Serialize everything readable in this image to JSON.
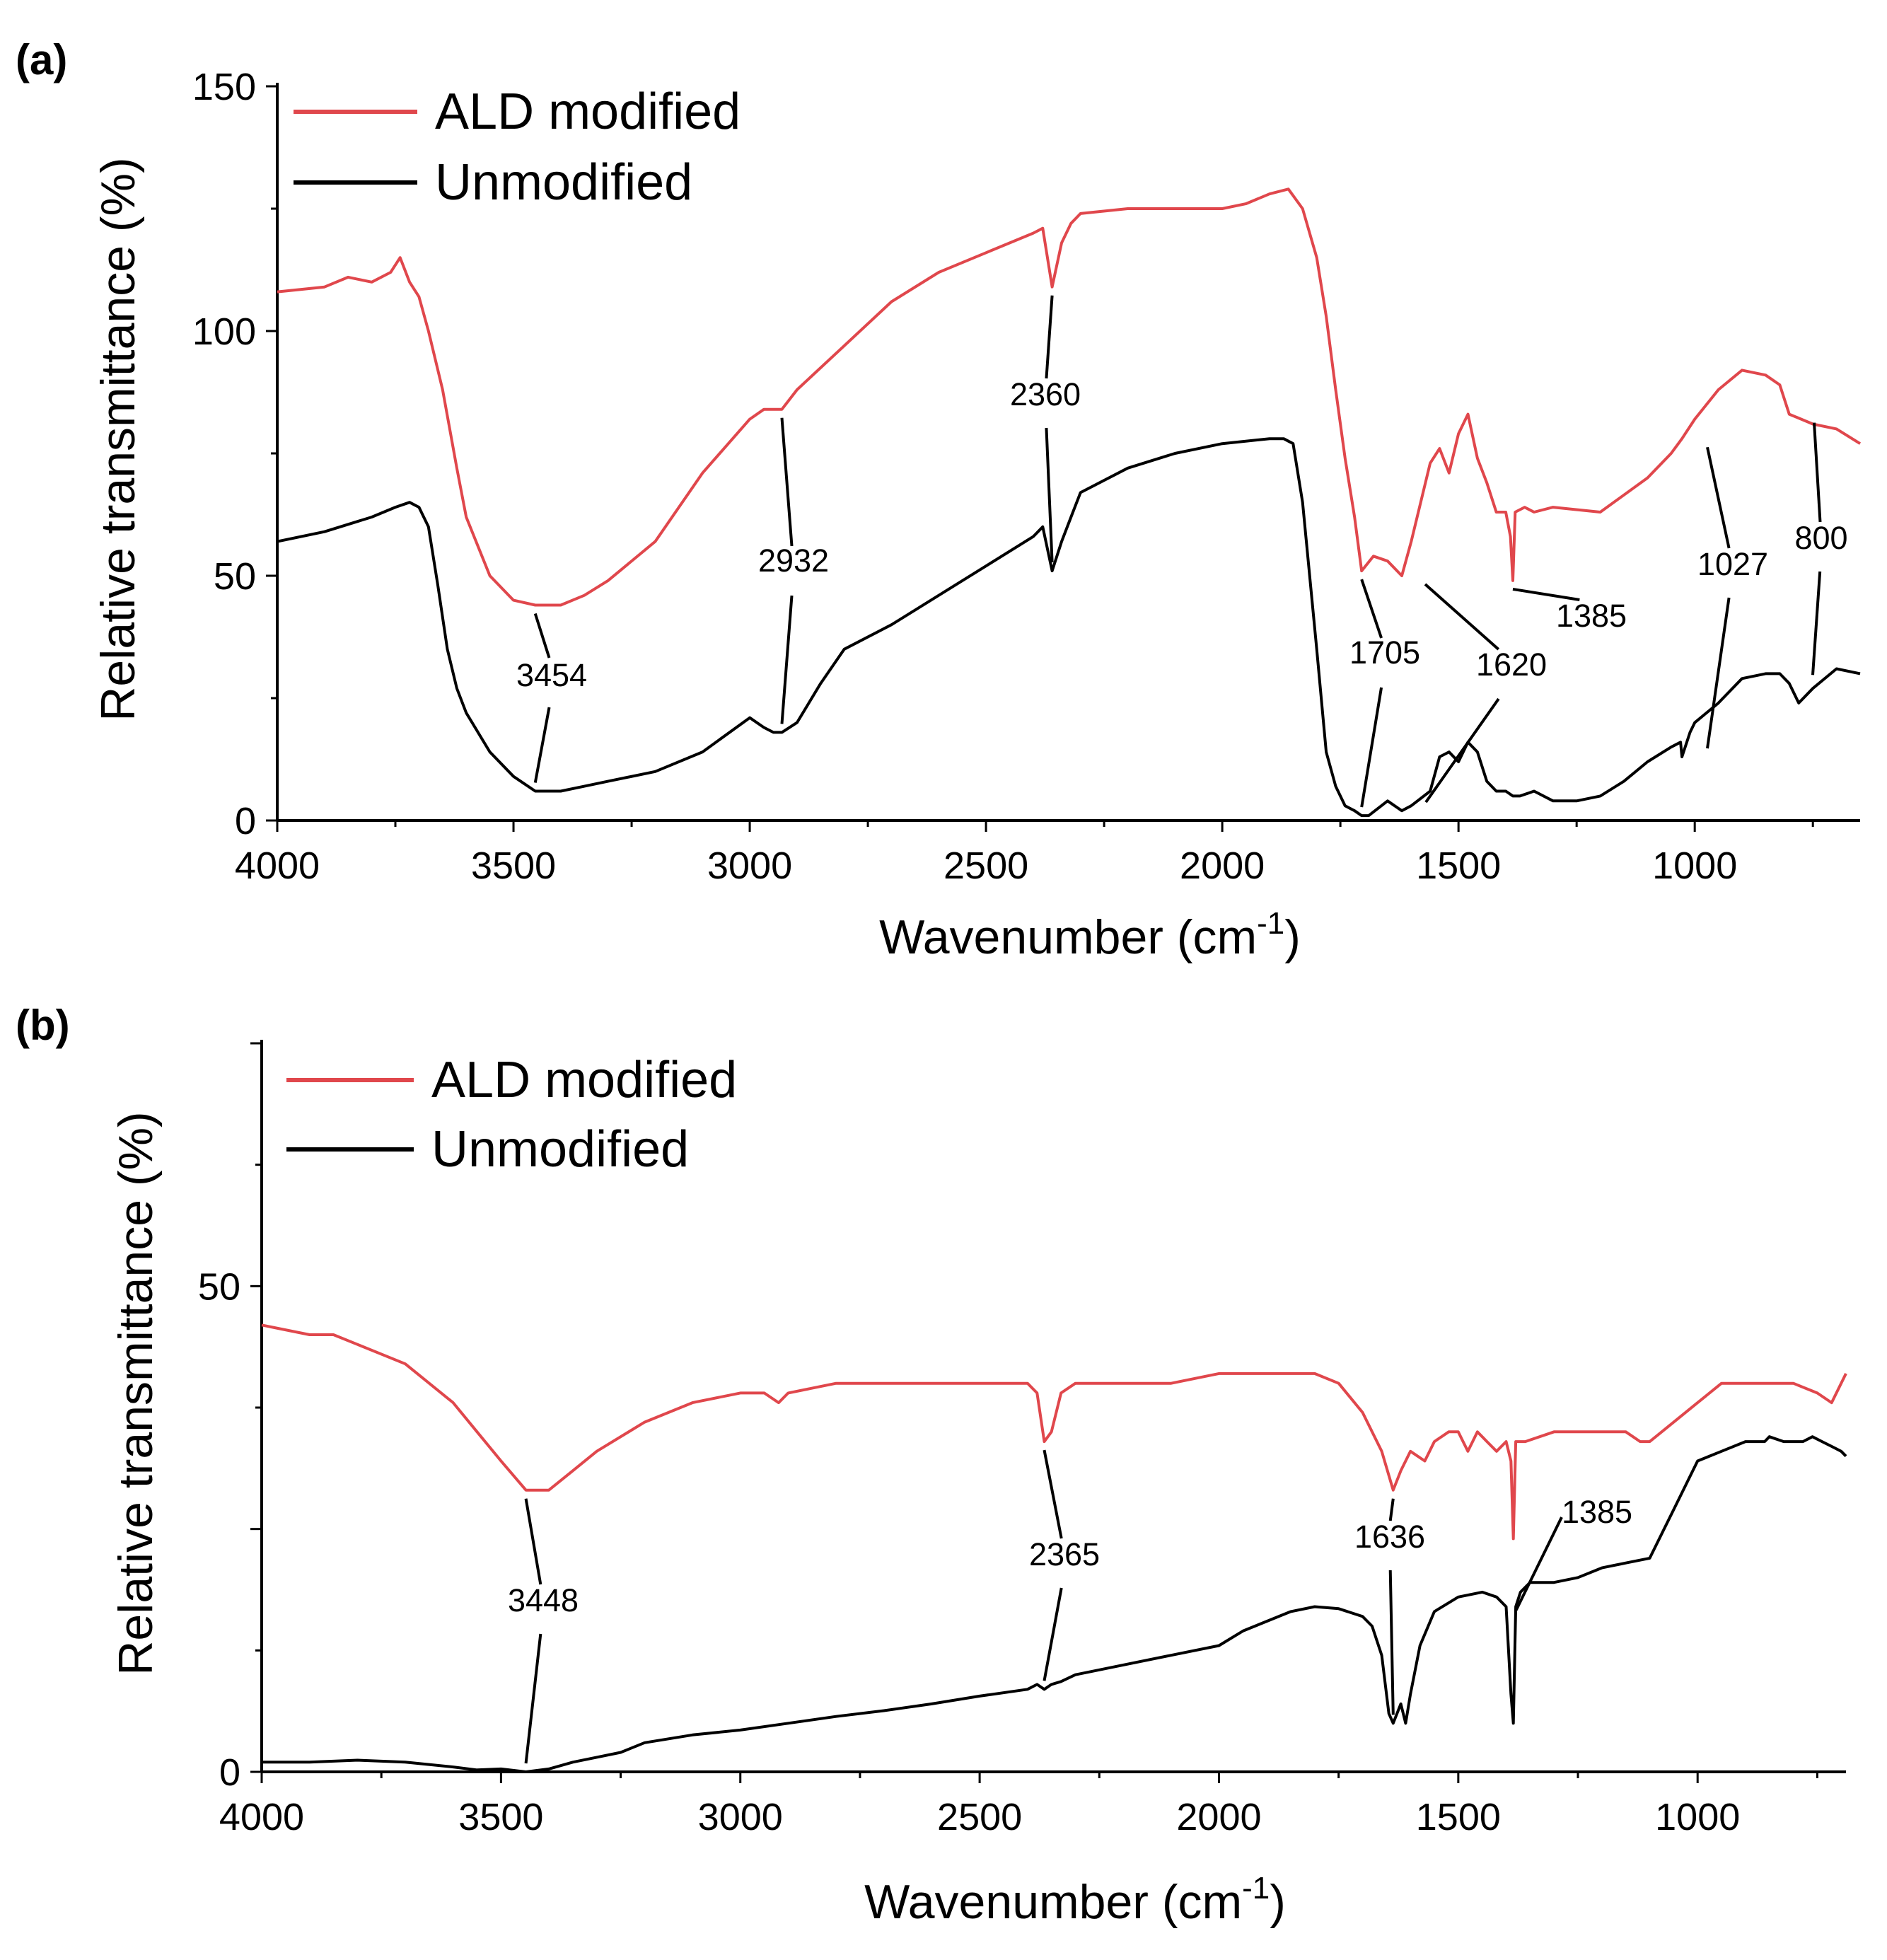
{
  "colors": {
    "ald": "#e0474c",
    "unmodified": "#000000"
  },
  "chart_data": [
    {
      "panel": "(a)",
      "type": "line",
      "xlabel": "Wavenumber (cm",
      "xlabel_sup": "-1",
      "xlabel_close": ")",
      "ylabel": "Relative transmittance (%)",
      "xlim": [
        4000,
        650
      ],
      "ylim": [
        0,
        150
      ],
      "xticks": [
        4000,
        3500,
        3000,
        2500,
        2000,
        1500,
        1000
      ],
      "yticks": [
        0,
        50,
        100,
        150
      ],
      "legend_position": "top-left",
      "series": [
        {
          "name": "ALD modified",
          "color_key": "ald",
          "x": [
            4000,
            3900,
            3850,
            3800,
            3760,
            3740,
            3720,
            3700,
            3680,
            3650,
            3620,
            3600,
            3550,
            3500,
            3454,
            3400,
            3350,
            3300,
            3200,
            3100,
            3000,
            2970,
            2932,
            2900,
            2800,
            2700,
            2600,
            2500,
            2400,
            2380,
            2360,
            2340,
            2320,
            2300,
            2200,
            2100,
            2000,
            1950,
            1900,
            1860,
            1830,
            1800,
            1780,
            1760,
            1740,
            1720,
            1705,
            1680,
            1650,
            1620,
            1600,
            1560,
            1540,
            1520,
            1500,
            1480,
            1460,
            1440,
            1420,
            1400,
            1390,
            1385,
            1380,
            1360,
            1340,
            1300,
            1200,
            1100,
            1050,
            1027,
            1000,
            950,
            900,
            850,
            820,
            800,
            750,
            700,
            650
          ],
          "y": [
            108,
            109,
            111,
            110,
            112,
            115,
            110,
            107,
            100,
            88,
            72,
            62,
            50,
            45,
            44,
            44,
            46,
            49,
            57,
            71,
            82,
            84,
            84,
            88,
            97,
            106,
            112,
            116,
            120,
            121,
            109,
            118,
            122,
            124,
            125,
            125,
            125,
            126,
            128,
            129,
            125,
            115,
            103,
            88,
            74,
            62,
            51,
            54,
            53,
            50,
            57,
            73,
            76,
            71,
            79,
            83,
            74,
            69,
            63,
            63,
            58,
            49,
            63,
            64,
            63,
            64,
            63,
            70,
            75,
            78,
            82,
            88,
            92,
            91,
            89,
            83,
            81,
            80,
            77
          ]
        },
        {
          "name": "Unmodified",
          "color_key": "unmodified",
          "x": [
            4000,
            3900,
            3800,
            3750,
            3720,
            3700,
            3680,
            3660,
            3640,
            3620,
            3600,
            3550,
            3500,
            3454,
            3400,
            3350,
            3300,
            3200,
            3100,
            3000,
            2970,
            2950,
            2932,
            2900,
            2850,
            2800,
            2700,
            2600,
            2500,
            2400,
            2380,
            2360,
            2340,
            2320,
            2300,
            2200,
            2100,
            2000,
            1900,
            1870,
            1850,
            1830,
            1800,
            1780,
            1760,
            1740,
            1720,
            1705,
            1690,
            1650,
            1620,
            1600,
            1560,
            1540,
            1520,
            1500,
            1480,
            1460,
            1440,
            1420,
            1400,
            1385,
            1370,
            1340,
            1300,
            1250,
            1200,
            1150,
            1100,
            1050,
            1030,
            1027,
            1010,
            1000,
            950,
            900,
            850,
            820,
            800,
            780,
            750,
            700,
            650
          ],
          "y": [
            57,
            59,
            62,
            64,
            65,
            64,
            60,
            48,
            35,
            27,
            22,
            14,
            9,
            6,
            6,
            7,
            8,
            10,
            14,
            21,
            19,
            18,
            18,
            20,
            28,
            35,
            40,
            46,
            52,
            58,
            60,
            51,
            57,
            62,
            67,
            72,
            75,
            77,
            78,
            78,
            77,
            65,
            35,
            14,
            7,
            3,
            2,
            1,
            1,
            4,
            2,
            3,
            6,
            13,
            14,
            12,
            16,
            14,
            8,
            6,
            6,
            5,
            5,
            6,
            4,
            4,
            5,
            8,
            12,
            15,
            16,
            13,
            18,
            20,
            24,
            29,
            30,
            30,
            28,
            24,
            27,
            31,
            30
          ]
        }
      ],
      "annotations": [
        {
          "label": "3454",
          "x": 3454
        },
        {
          "label": "2932",
          "x": 2932
        },
        {
          "label": "2360",
          "x": 2360
        },
        {
          "label": "1705",
          "x": 1705
        },
        {
          "label": "1620",
          "x": 1620
        },
        {
          "label": "1385",
          "x": 1385
        },
        {
          "label": "1027",
          "x": 1027
        },
        {
          "label": "800",
          "x": 800
        }
      ]
    },
    {
      "panel": "(b)",
      "type": "line",
      "xlabel": "Wavenumber (cm",
      "xlabel_sup": "-1",
      "xlabel_close": ")",
      "ylabel": "Relative transmittance (%)",
      "xlim": [
        4000,
        690
      ],
      "ylim": [
        0,
        75
      ],
      "xticks": [
        4000,
        3500,
        3000,
        2500,
        2000,
        1500,
        1000
      ],
      "yticks": [
        0,
        50
      ],
      "yticks_labelled": [
        0,
        50
      ],
      "legend_position": "top-left",
      "series": [
        {
          "name": "ALD modified",
          "color_key": "ald",
          "x": [
            4000,
            3900,
            3850,
            3800,
            3700,
            3600,
            3550,
            3500,
            3448,
            3400,
            3350,
            3300,
            3200,
            3100,
            3000,
            2950,
            2920,
            2900,
            2800,
            2700,
            2600,
            2500,
            2400,
            2380,
            2365,
            2350,
            2330,
            2300,
            2200,
            2100,
            2000,
            1900,
            1800,
            1750,
            1700,
            1660,
            1636,
            1620,
            1600,
            1570,
            1550,
            1520,
            1500,
            1480,
            1460,
            1440,
            1420,
            1400,
            1390,
            1385,
            1380,
            1360,
            1300,
            1200,
            1150,
            1120,
            1100,
            1050,
            1000,
            950,
            900,
            850,
            800,
            750,
            720,
            690
          ],
          "y": [
            46,
            45,
            45,
            44,
            42,
            38,
            35,
            32,
            29,
            29,
            31,
            33,
            36,
            38,
            39,
            39,
            38,
            39,
            40,
            40,
            40,
            40,
            40,
            39,
            34,
            35,
            39,
            40,
            40,
            40,
            41,
            41,
            41,
            40,
            37,
            33,
            29,
            31,
            33,
            32,
            34,
            35,
            35,
            33,
            35,
            34,
            33,
            34,
            32,
            24,
            34,
            34,
            35,
            35,
            35,
            34,
            34,
            36,
            38,
            40,
            40,
            40,
            40,
            39,
            38,
            41
          ]
        },
        {
          "name": "Unmodified",
          "color_key": "unmodified",
          "x": [
            4000,
            3900,
            3800,
            3700,
            3600,
            3550,
            3500,
            3448,
            3400,
            3350,
            3300,
            3250,
            3200,
            3100,
            3000,
            2900,
            2800,
            2700,
            2600,
            2500,
            2400,
            2380,
            2365,
            2350,
            2330,
            2300,
            2200,
            2100,
            2000,
            1950,
            1900,
            1850,
            1800,
            1750,
            1700,
            1680,
            1660,
            1645,
            1636,
            1620,
            1610,
            1600,
            1580,
            1550,
            1500,
            1450,
            1420,
            1400,
            1390,
            1385,
            1380,
            1370,
            1350,
            1300,
            1250,
            1200,
            1150,
            1100,
            1050,
            1000,
            950,
            900,
            860,
            850,
            820,
            800,
            780,
            760,
            740,
            720,
            700,
            690
          ],
          "y": [
            1,
            1,
            1.2,
            1,
            0.5,
            0.2,
            0.3,
            0,
            0.3,
            1,
            1.5,
            2,
            3,
            3.8,
            4.3,
            5,
            5.7,
            6.3,
            7,
            7.8,
            8.5,
            9,
            8.5,
            9,
            9.3,
            10,
            11,
            12,
            13,
            14.5,
            15.5,
            16.5,
            17,
            16.8,
            16,
            15,
            12,
            6,
            5,
            7,
            5,
            8,
            13,
            16.5,
            18,
            18.5,
            18,
            17,
            8,
            5,
            17,
            18.5,
            19.5,
            19.5,
            20,
            21,
            21.5,
            22,
            27,
            32,
            33,
            34,
            34,
            34.5,
            34,
            34,
            34,
            34.5,
            34,
            33.5,
            33,
            32.5
          ]
        }
      ],
      "annotations": [
        {
          "label": "3448",
          "x": 3448
        },
        {
          "label": "2365",
          "x": 2365
        },
        {
          "label": "1636",
          "x": 1636
        },
        {
          "label": "1385",
          "x": 1385
        }
      ]
    }
  ]
}
